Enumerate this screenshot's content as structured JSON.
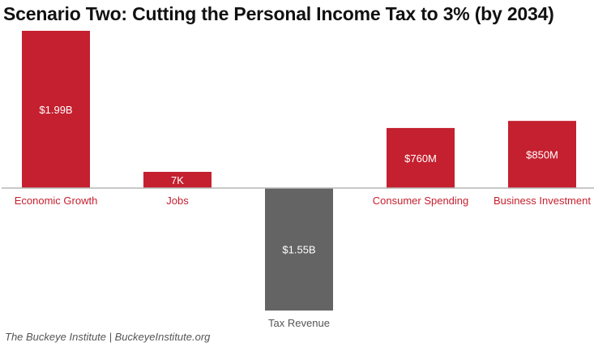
{
  "chart_data": {
    "type": "bar",
    "title": "Scenario Two: Cutting the Personal Income Tax to 3% (by 2034)",
    "categories": [
      "Economic Growth",
      "Jobs",
      "Tax Revenue",
      "Consumer Spending",
      "Business Investment"
    ],
    "values": [
      1990,
      7,
      -1550,
      760,
      850
    ],
    "units": [
      "millions USD",
      "thousand jobs",
      "millions USD",
      "millions USD",
      "millions USD"
    ],
    "data_labels": [
      "$1.99B",
      "7K",
      "$1.55B",
      "$760M",
      "$850M"
    ],
    "colors": [
      "#c4202f",
      "#c4202f",
      "#646464",
      "#c4202f",
      "#c4202f"
    ],
    "label_colors": [
      "#c4202f",
      "#c4202f",
      "#555555",
      "#c4202f",
      "#c4202f"
    ],
    "ylim": [
      -1550,
      1990
    ],
    "grid": false,
    "xlabel": "",
    "ylabel": ""
  },
  "footer": "The Buckeye Institute | BuckeyeInstitute.org"
}
